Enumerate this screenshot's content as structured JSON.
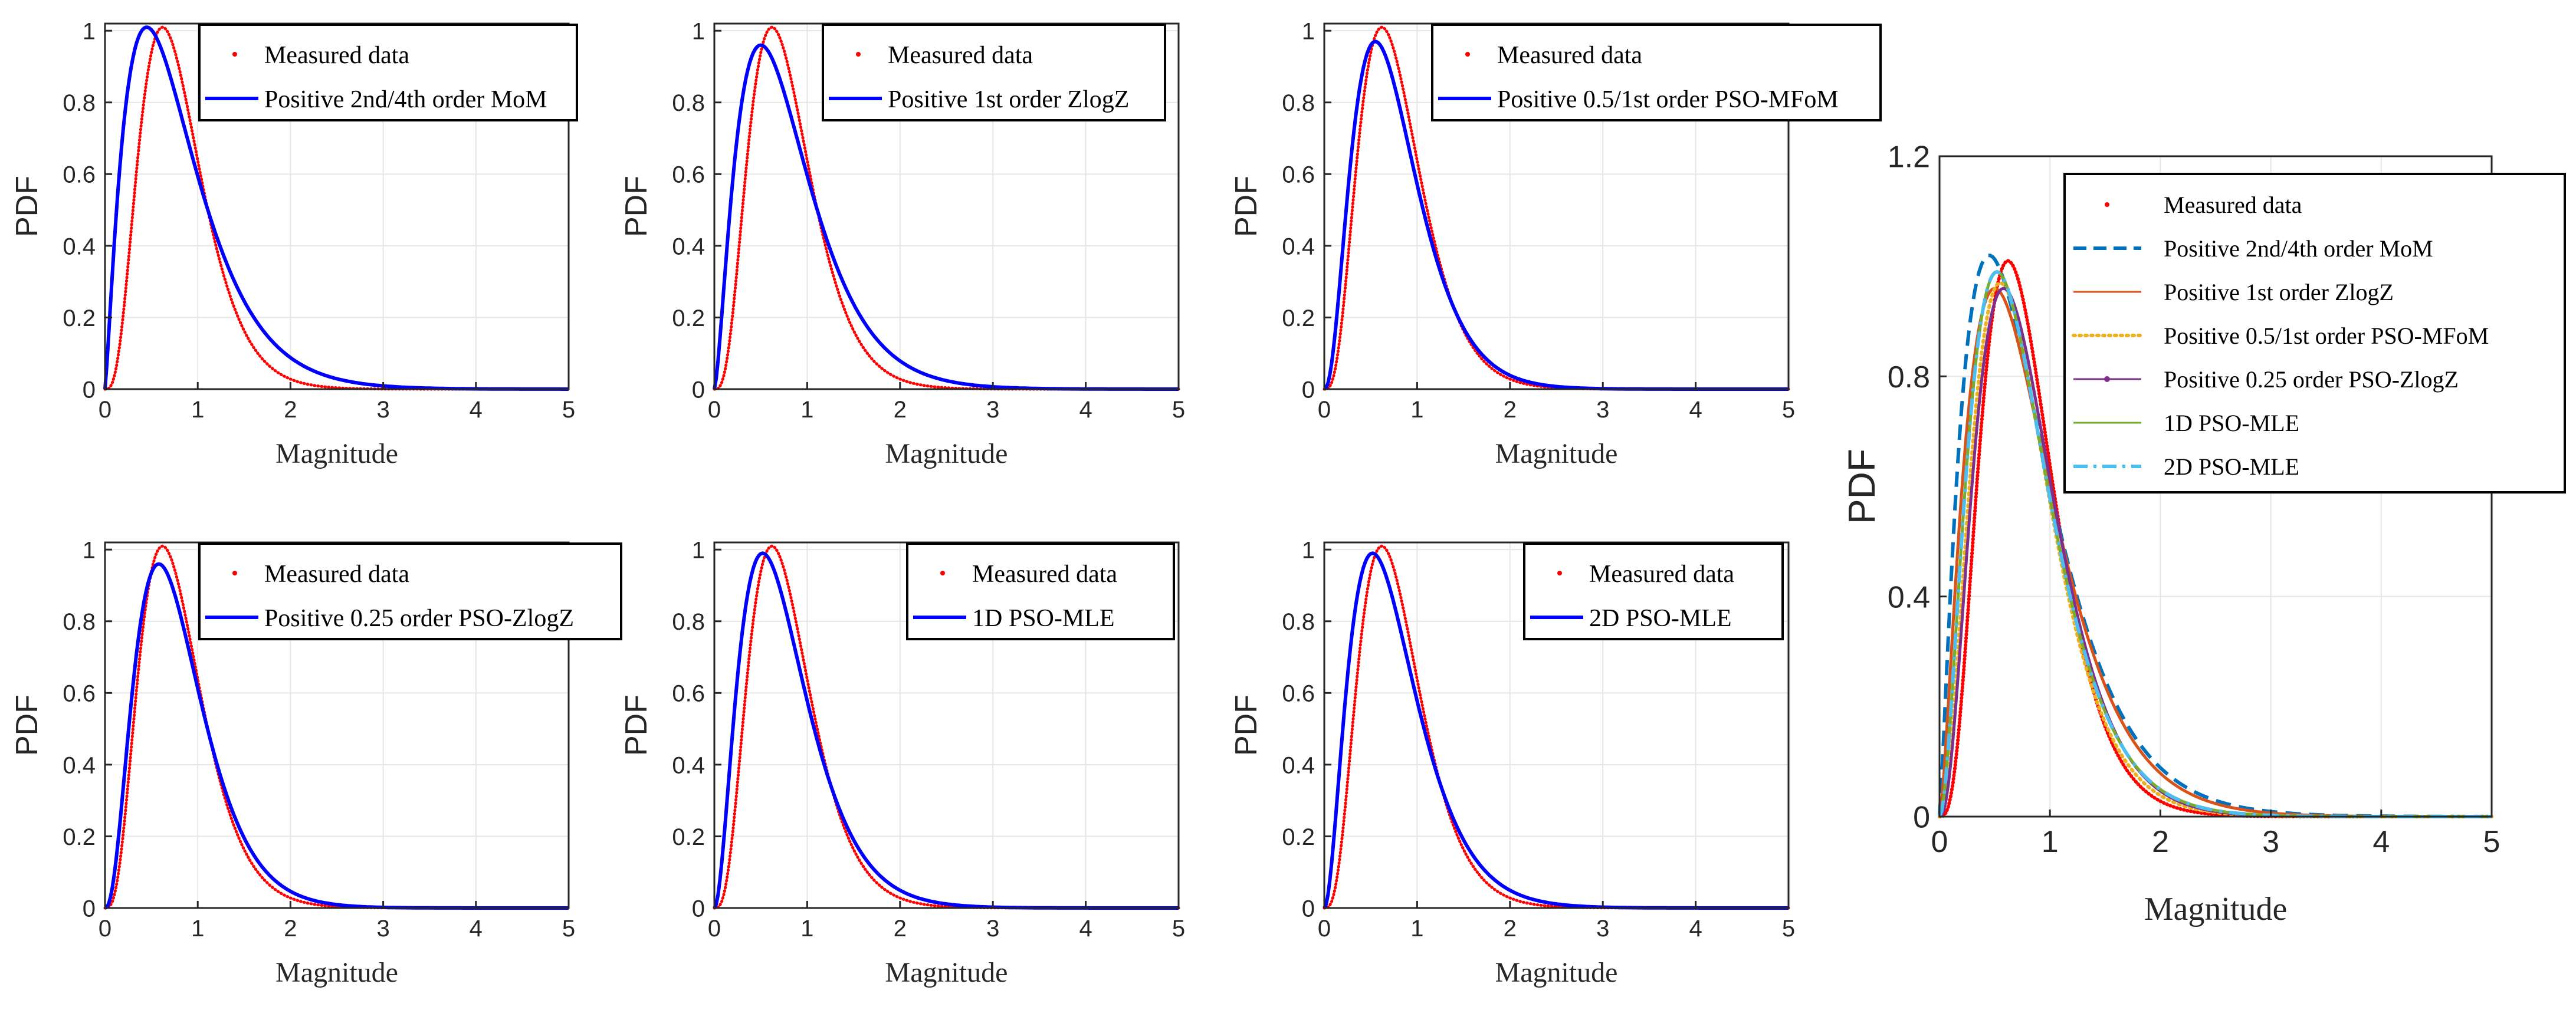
{
  "colors": {
    "measured": "#ff0000",
    "fit": "#0000ff",
    "mom": "#0072bd",
    "zlogz": "#d95319",
    "mfom": "#edb120",
    "pso_zlogz": "#7e2f8e",
    "mle1d": "#77ac30",
    "mle2d": "#4dbeee",
    "grid": "#e6e6e6",
    "axis": "#262626"
  },
  "chart_data": [
    {
      "type": "line",
      "panel": "top-left",
      "title": "",
      "xlabel": "Magnitude",
      "ylabel": "PDF",
      "xlim": [
        0,
        5
      ],
      "ylim": [
        0,
        1.02
      ],
      "xticks": [
        "0",
        "1",
        "2",
        "3",
        "4",
        "5"
      ],
      "yticks": [
        "0",
        "0.2",
        "0.4",
        "0.6",
        "0.8",
        "1"
      ],
      "grid": true,
      "legend_position": "top",
      "series": [
        {
          "name": "Measured data",
          "style": "dotted",
          "peak_x": 0.62,
          "peak_y": 1.01,
          "x": [
            0,
            0.2,
            0.4,
            0.62,
            0.8,
            1.0,
            1.2,
            1.5,
            1.8,
            2.0,
            2.5,
            3.0,
            4.0,
            5.0
          ],
          "values": [
            0,
            0.5,
            0.9,
            1.01,
            0.93,
            0.72,
            0.5,
            0.23,
            0.08,
            0.04,
            0.01,
            0.003,
            0,
            0
          ]
        },
        {
          "name": "Positive 2nd/4th order MoM",
          "style": "solid",
          "peak_x": 0.45,
          "peak_y": 1.01,
          "x": [
            0,
            0.2,
            0.45,
            0.6,
            0.8,
            1.0,
            1.2,
            1.5,
            2.0,
            2.5,
            3.0,
            4.0,
            5.0
          ],
          "values": [
            0,
            0.72,
            1.01,
            0.94,
            0.73,
            0.52,
            0.36,
            0.2,
            0.07,
            0.03,
            0.012,
            0.003,
            0
          ]
        }
      ]
    },
    {
      "type": "line",
      "panel": "top-middle",
      "title": "",
      "xlabel": "Magnitude",
      "ylabel": "PDF",
      "xlim": [
        0,
        5
      ],
      "ylim": [
        0,
        1.02
      ],
      "xticks": [
        "0",
        "1",
        "2",
        "3",
        "4",
        "5"
      ],
      "yticks": [
        "0",
        "0.2",
        "0.4",
        "0.6",
        "0.8",
        "1"
      ],
      "grid": true,
      "legend_position": "top",
      "series": [
        {
          "name": "Measured data",
          "style": "dotted",
          "peak_x": 0.62,
          "peak_y": 1.01,
          "x": [
            0,
            0.2,
            0.4,
            0.62,
            0.8,
            1.0,
            1.2,
            1.5,
            1.8,
            2.0,
            2.5,
            3.0,
            4.0,
            5.0
          ],
          "values": [
            0,
            0.5,
            0.9,
            1.01,
            0.93,
            0.72,
            0.5,
            0.23,
            0.08,
            0.04,
            0.01,
            0.003,
            0,
            0
          ]
        },
        {
          "name": "Positive 1st order ZlogZ",
          "style": "solid",
          "peak_x": 0.5,
          "peak_y": 0.96,
          "x": [
            0,
            0.2,
            0.5,
            0.7,
            1.0,
            1.2,
            1.5,
            2.0,
            2.5,
            3.0,
            4.0,
            5.0
          ],
          "values": [
            0,
            0.62,
            0.96,
            0.88,
            0.6,
            0.43,
            0.25,
            0.1,
            0.045,
            0.02,
            0.006,
            0.002
          ]
        }
      ]
    },
    {
      "type": "line",
      "panel": "top-right",
      "title": "",
      "xlabel": "Magnitude",
      "ylabel": "PDF",
      "xlim": [
        0,
        5
      ],
      "ylim": [
        0,
        1.02
      ],
      "xticks": [
        "0",
        "1",
        "2",
        "3",
        "4",
        "5"
      ],
      "yticks": [
        "0",
        "0.2",
        "0.4",
        "0.6",
        "0.8",
        "1"
      ],
      "grid": true,
      "legend_position": "top",
      "series": [
        {
          "name": "Measured data",
          "style": "dotted",
          "peak_x": 0.62,
          "peak_y": 1.01,
          "x": [
            0,
            0.2,
            0.4,
            0.62,
            0.8,
            1.0,
            1.2,
            1.5,
            1.8,
            2.0,
            2.5,
            3.0,
            4.0,
            5.0
          ],
          "values": [
            0,
            0.5,
            0.9,
            1.01,
            0.93,
            0.72,
            0.5,
            0.23,
            0.08,
            0.04,
            0.01,
            0.003,
            0,
            0
          ]
        },
        {
          "name": "Positive 0.5/1st order PSO-MFoM",
          "style": "solid",
          "peak_x": 0.55,
          "peak_y": 0.97,
          "x": [
            0,
            0.2,
            0.55,
            0.8,
            1.0,
            1.2,
            1.5,
            2.0,
            2.5,
            3.0,
            4.0,
            5.0
          ],
          "values": [
            0,
            0.55,
            0.97,
            0.82,
            0.62,
            0.44,
            0.25,
            0.08,
            0.025,
            0.008,
            0.001,
            0
          ]
        }
      ]
    },
    {
      "type": "line",
      "panel": "bottom-left",
      "title": "",
      "xlabel": "Magnitude",
      "ylabel": "PDF",
      "xlim": [
        0,
        5
      ],
      "ylim": [
        0,
        1.02
      ],
      "xticks": [
        "0",
        "1",
        "2",
        "3",
        "4",
        "5"
      ],
      "yticks": [
        "0",
        "0.2",
        "0.4",
        "0.6",
        "0.8",
        "1"
      ],
      "grid": true,
      "legend_position": "top",
      "series": [
        {
          "name": "Measured data",
          "style": "dotted",
          "peak_x": 0.62,
          "peak_y": 1.01,
          "x": [
            0,
            0.2,
            0.4,
            0.62,
            0.8,
            1.0,
            1.2,
            1.5,
            1.8,
            2.0,
            2.5,
            3.0,
            4.0,
            5.0
          ],
          "values": [
            0,
            0.5,
            0.9,
            1.01,
            0.93,
            0.72,
            0.5,
            0.23,
            0.08,
            0.04,
            0.01,
            0.003,
            0,
            0
          ]
        },
        {
          "name": "Positive 0.25 order PSO-ZlogZ",
          "style": "solid",
          "peak_x": 0.58,
          "peak_y": 0.96,
          "x": [
            0,
            0.2,
            0.58,
            0.8,
            1.0,
            1.2,
            1.5,
            2.0,
            2.5,
            3.0,
            4.0,
            5.0
          ],
          "values": [
            0,
            0.52,
            0.96,
            0.84,
            0.65,
            0.46,
            0.26,
            0.08,
            0.022,
            0.006,
            0.001,
            0
          ]
        }
      ]
    },
    {
      "type": "line",
      "panel": "bottom-middle",
      "title": "",
      "xlabel": "Magnitude",
      "ylabel": "PDF",
      "xlim": [
        0,
        5
      ],
      "ylim": [
        0,
        1.02
      ],
      "xticks": [
        "0",
        "1",
        "2",
        "3",
        "4",
        "5"
      ],
      "yticks": [
        "0",
        "0.2",
        "0.4",
        "0.6",
        "0.8",
        "1"
      ],
      "grid": true,
      "legend_position": "top-right",
      "series": [
        {
          "name": "Measured data",
          "style": "dotted",
          "peak_x": 0.62,
          "peak_y": 1.01,
          "x": [
            0,
            0.2,
            0.4,
            0.62,
            0.8,
            1.0,
            1.2,
            1.5,
            1.8,
            2.0,
            2.5,
            3.0,
            4.0,
            5.0
          ],
          "values": [
            0,
            0.5,
            0.9,
            1.01,
            0.93,
            0.72,
            0.5,
            0.23,
            0.08,
            0.04,
            0.01,
            0.003,
            0,
            0
          ]
        },
        {
          "name": "1D PSO-MLE",
          "style": "solid",
          "peak_x": 0.52,
          "peak_y": 0.99,
          "x": [
            0,
            0.2,
            0.52,
            0.8,
            1.0,
            1.2,
            1.5,
            2.0,
            2.5,
            3.0,
            4.0,
            5.0
          ],
          "values": [
            0,
            0.6,
            0.99,
            0.8,
            0.6,
            0.42,
            0.25,
            0.09,
            0.03,
            0.01,
            0.002,
            0
          ]
        }
      ]
    },
    {
      "type": "line",
      "panel": "bottom-right",
      "title": "",
      "xlabel": "Magnitude",
      "ylabel": "PDF",
      "xlim": [
        0,
        5
      ],
      "ylim": [
        0,
        1.02
      ],
      "xticks": [
        "0",
        "1",
        "2",
        "3",
        "4",
        "5"
      ],
      "yticks": [
        "0",
        "0.2",
        "0.4",
        "0.6",
        "0.8",
        "1"
      ],
      "grid": true,
      "legend_position": "top-right",
      "series": [
        {
          "name": "Measured data",
          "style": "dotted",
          "peak_x": 0.62,
          "peak_y": 1.01,
          "x": [
            0,
            0.2,
            0.4,
            0.62,
            0.8,
            1.0,
            1.2,
            1.5,
            1.8,
            2.0,
            2.5,
            3.0,
            4.0,
            5.0
          ],
          "values": [
            0,
            0.5,
            0.9,
            1.01,
            0.93,
            0.72,
            0.5,
            0.23,
            0.08,
            0.04,
            0.01,
            0.003,
            0,
            0
          ]
        },
        {
          "name": "2D PSO-MLE",
          "style": "solid",
          "peak_x": 0.52,
          "peak_y": 0.99,
          "x": [
            0,
            0.2,
            0.52,
            0.8,
            1.0,
            1.2,
            1.5,
            2.0,
            2.5,
            3.0,
            4.0,
            5.0
          ],
          "values": [
            0,
            0.6,
            0.99,
            0.8,
            0.6,
            0.42,
            0.25,
            0.09,
            0.03,
            0.01,
            0.002,
            0
          ]
        }
      ]
    },
    {
      "type": "line",
      "panel": "combined",
      "title": "",
      "xlabel": "Magnitude",
      "ylabel": "PDF",
      "xlim": [
        0,
        5
      ],
      "ylim": [
        0,
        1.2
      ],
      "xticks": [
        "0",
        "1",
        "2",
        "3",
        "4",
        "5"
      ],
      "yticks": [
        "0",
        "0.4",
        "0.8",
        "1.2"
      ],
      "grid": true,
      "legend_position": "top-right",
      "series": [
        {
          "name": "Measured data",
          "style": "dotted",
          "color_key": "measured",
          "peak_x": 0.62,
          "peak_y": 1.01,
          "x": [
            0,
            0.2,
            0.4,
            0.62,
            0.8,
            1.0,
            1.2,
            1.5,
            1.8,
            2.0,
            2.5,
            3.0,
            4.0,
            5.0
          ],
          "values": [
            0,
            0.5,
            0.9,
            1.01,
            0.93,
            0.72,
            0.5,
            0.23,
            0.08,
            0.04,
            0.01,
            0.003,
            0,
            0
          ]
        },
        {
          "name": "Positive 2nd/4th order MoM",
          "style": "dashed",
          "color_key": "mom",
          "peak_x": 0.45,
          "peak_y": 1.02,
          "x": [
            0,
            0.2,
            0.45,
            0.6,
            0.8,
            1.0,
            1.2,
            1.5,
            2.0,
            2.5,
            3.0,
            4.0,
            5.0
          ],
          "values": [
            0,
            0.72,
            1.02,
            0.95,
            0.74,
            0.53,
            0.37,
            0.2,
            0.07,
            0.03,
            0.012,
            0.003,
            0
          ]
        },
        {
          "name": "Positive 1st order ZlogZ",
          "style": "solid",
          "color_key": "zlogz",
          "peak_x": 0.5,
          "peak_y": 0.96,
          "x": [
            0,
            0.2,
            0.5,
            0.7,
            1.0,
            1.2,
            1.5,
            2.0,
            2.5,
            3.0,
            4.0,
            5.0
          ],
          "values": [
            0,
            0.62,
            0.96,
            0.88,
            0.6,
            0.43,
            0.25,
            0.1,
            0.045,
            0.02,
            0.006,
            0.002
          ]
        },
        {
          "name": "Positive 0.5/1st order PSO-MFoM",
          "style": "dotted-thick",
          "color_key": "mfom",
          "peak_x": 0.55,
          "peak_y": 0.97,
          "x": [
            0,
            0.2,
            0.55,
            0.8,
            1.0,
            1.2,
            1.5,
            2.0,
            2.5,
            3.0,
            4.0,
            5.0
          ],
          "values": [
            0,
            0.55,
            0.97,
            0.82,
            0.62,
            0.44,
            0.25,
            0.08,
            0.025,
            0.008,
            0.001,
            0
          ]
        },
        {
          "name": "Positive 0.25 order PSO-ZlogZ",
          "style": "solid-marker",
          "color_key": "pso_zlogz",
          "peak_x": 0.58,
          "peak_y": 0.96,
          "x": [
            0,
            0.2,
            0.58,
            0.8,
            1.0,
            1.2,
            1.5,
            2.0,
            2.5,
            3.0,
            4.0,
            5.0
          ],
          "values": [
            0,
            0.52,
            0.96,
            0.84,
            0.65,
            0.46,
            0.26,
            0.08,
            0.022,
            0.006,
            0.001,
            0
          ]
        },
        {
          "name": "1D PSO-MLE",
          "style": "solid",
          "color_key": "mle1d",
          "peak_x": 0.52,
          "peak_y": 0.99,
          "x": [
            0,
            0.2,
            0.52,
            0.8,
            1.0,
            1.2,
            1.5,
            2.0,
            2.5,
            3.0,
            4.0,
            5.0
          ],
          "values": [
            0,
            0.6,
            0.99,
            0.8,
            0.6,
            0.42,
            0.25,
            0.09,
            0.03,
            0.01,
            0.002,
            0
          ]
        },
        {
          "name": "2D PSO-MLE",
          "style": "dashdot",
          "color_key": "mle2d",
          "peak_x": 0.52,
          "peak_y": 0.99,
          "x": [
            0,
            0.2,
            0.52,
            0.8,
            1.0,
            1.2,
            1.5,
            2.0,
            2.5,
            3.0,
            4.0,
            5.0
          ],
          "values": [
            0,
            0.6,
            0.99,
            0.8,
            0.6,
            0.42,
            0.25,
            0.09,
            0.03,
            0.01,
            0.002,
            0
          ]
        }
      ]
    }
  ]
}
